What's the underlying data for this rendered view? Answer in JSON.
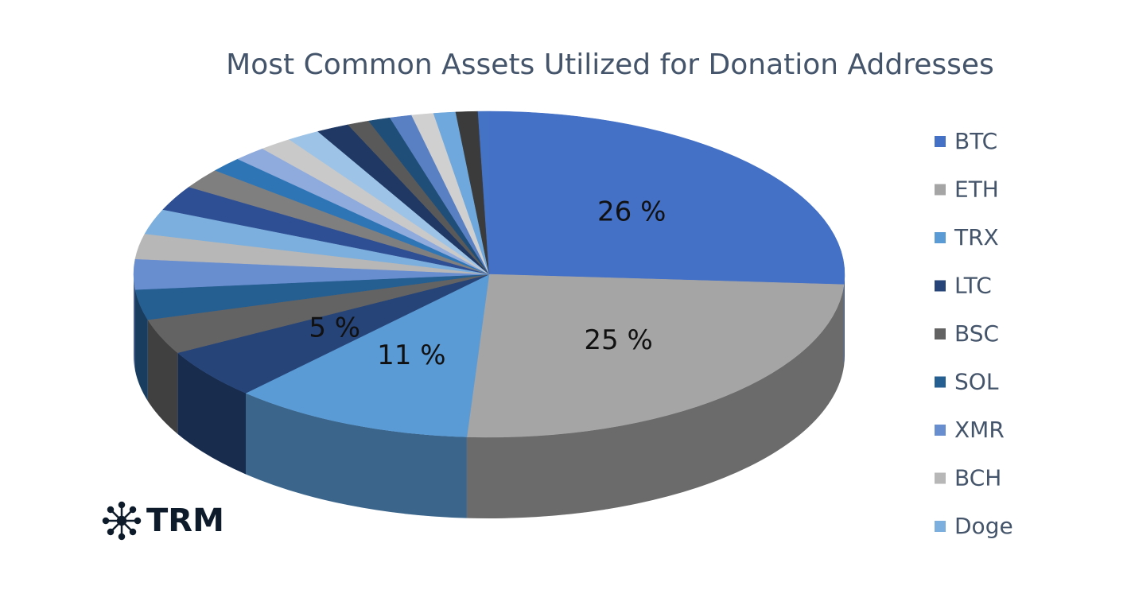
{
  "chart_data": {
    "type": "pie",
    "title": "Most Common Assets Utilized for Donation Addresses",
    "categories": [
      "BTC",
      "ETH",
      "TRX",
      "LTC",
      "BSC",
      "SOL",
      "XMR",
      "BCH",
      "Doge",
      null,
      null,
      null,
      null,
      null,
      null,
      null,
      null,
      null,
      null,
      null,
      null,
      null,
      null
    ],
    "values": [
      26,
      25,
      11,
      5,
      3.5,
      3,
      3,
      2.5,
      2.5,
      2.5,
      2,
      1.5,
      1.5,
      1.5,
      1.5,
      1.5,
      1,
      1,
      1,
      1,
      1,
      1,
      0.5
    ],
    "value_labels": [
      "26 %",
      "25 %",
      "11 %",
      "5 %",
      null,
      null,
      null,
      null,
      null,
      null,
      null,
      null,
      null,
      null,
      null,
      null,
      null,
      null,
      null,
      null,
      null,
      null,
      null
    ],
    "colors": [
      "#4470c6",
      "#a5a5a5",
      "#5b9bd5",
      "#264478",
      "#636363",
      "#255e91",
      "#698ed0",
      "#b7b7b7",
      "#7cafdd",
      "#2f4f94",
      "#7f7f7f",
      "#2e75b6",
      "#8faadc",
      "#c9c9c9",
      "#9dc3e6",
      "#1f3864",
      "#595959",
      "#1f4e79",
      "#5a80c4",
      "#d0d0d0",
      "#6fa8dc",
      "#3b3b3b",
      "#4472c4"
    ],
    "legend": "right"
  },
  "logo": "TRM"
}
